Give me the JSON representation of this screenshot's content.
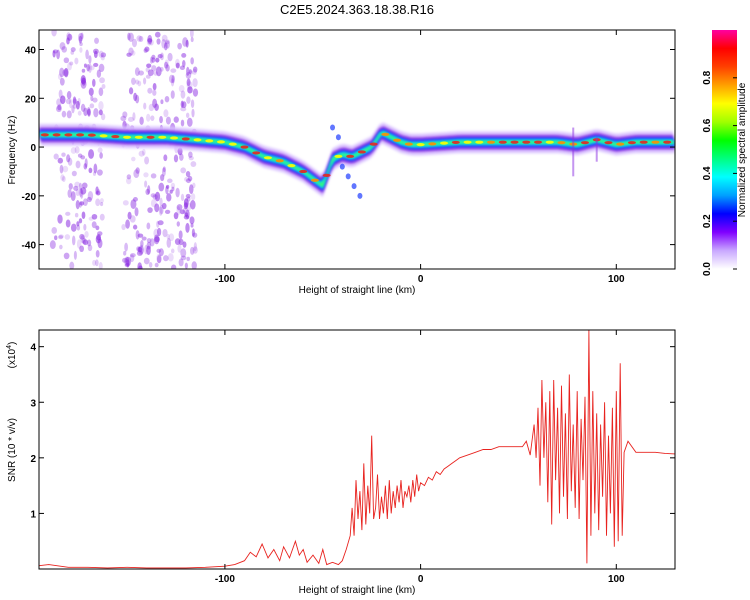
{
  "title": "C2E5.2024.363.18.38.R16",
  "colors": {
    "snr_line": "#e8231f",
    "frame": "#000000",
    "spectrogram_ridge": "#e8231f",
    "spectrogram_scatter": "#8a2be2"
  },
  "chart_data": [
    {
      "type": "heatmap",
      "name": "spectrogram",
      "xlabel": "Height of straight line (km)",
      "ylabel": "Frequency (Hz)",
      "xlim": [
        -195,
        130
      ],
      "ylim": [
        -50,
        48
      ],
      "xticks": [
        -100,
        0,
        100
      ],
      "yticks": [
        -40,
        -20,
        0,
        20,
        40
      ],
      "colorbar": {
        "label": "Normalized spectral amplitude",
        "range": [
          0.0,
          1.0
        ],
        "ticks": [
          0.0,
          0.2,
          0.4,
          0.6,
          0.8
        ],
        "tick_labels": [
          "0.0",
          "0.2",
          "0.4",
          "0.6",
          "0.8"
        ],
        "colormap": [
          "#ffffff",
          "#c9a8ff",
          "#8000ff",
          "#0000ff",
          "#00a0ff",
          "#00ffff",
          "#00ff80",
          "#00ff00",
          "#a0ff00",
          "#ffff00",
          "#ffa000",
          "#ff4000",
          "#ff0000",
          "#ff00a0"
        ]
      },
      "ridge": {
        "x": [
          -195,
          -170,
          -150,
          -130,
          -115,
          -100,
          -90,
          -80,
          -70,
          -60,
          -50,
          -45,
          -40,
          -35,
          -30,
          -25,
          -20,
          -15,
          -10,
          -5,
          0,
          20,
          40,
          60,
          70,
          80,
          90,
          100,
          110,
          130
        ],
        "y": [
          5,
          5,
          4,
          4,
          3,
          2,
          0,
          -4,
          -6,
          -10,
          -16,
          -5,
          -3,
          -4,
          -2,
          0,
          6,
          4,
          2,
          1,
          1,
          2,
          2,
          2,
          2,
          1,
          3,
          1,
          2,
          2
        ]
      }
    },
    {
      "type": "line",
      "name": "snr",
      "xlabel": "Height of straight line (km)",
      "ylabel": "SNR (10 * v/v)",
      "y_multiplier": "(x10",
      "y_multiplier_exp": "4",
      "xlim": [
        -195,
        130
      ],
      "ylim": [
        0,
        4.3
      ],
      "xticks": [
        -100,
        0,
        100
      ],
      "yticks": [
        1,
        2,
        3,
        4
      ],
      "x": [
        -195,
        -190,
        -180,
        -170,
        -160,
        -150,
        -140,
        -130,
        -120,
        -110,
        -100,
        -95,
        -90,
        -87,
        -84,
        -81,
        -78,
        -75,
        -72,
        -70,
        -67,
        -64,
        -62,
        -60,
        -58,
        -55,
        -52,
        -50,
        -48,
        -45,
        -42,
        -40,
        -38,
        -36,
        -35,
        -34,
        -33,
        -32,
        -31,
        -30,
        -29,
        -28,
        -27,
        -26,
        -25,
        -24,
        -23,
        -22,
        -21,
        -20,
        -19,
        -18,
        -17,
        -16,
        -15,
        -14,
        -13,
        -12,
        -11,
        -10,
        -9,
        -8,
        -7,
        -6,
        -5,
        -4,
        -3,
        -2,
        -1,
        0,
        2,
        4,
        6,
        8,
        10,
        12,
        14,
        16,
        18,
        20,
        24,
        28,
        32,
        36,
        40,
        44,
        48,
        52,
        54,
        56,
        58,
        59,
        60,
        61,
        62,
        63,
        64,
        65,
        66,
        67,
        68,
        69,
        70,
        71,
        72,
        73,
        74,
        75,
        76,
        77,
        78,
        79,
        80,
        81,
        82,
        83,
        84,
        85,
        86,
        87,
        88,
        89,
        90,
        91,
        92,
        93,
        94,
        95,
        96,
        97,
        98,
        99,
        100,
        101,
        102,
        103,
        104,
        106,
        110,
        115,
        120,
        125,
        130
      ],
      "y": [
        0.06,
        0.08,
        0.03,
        0.03,
        0.02,
        0.03,
        0.02,
        0.02,
        0.02,
        0.03,
        0.05,
        0.08,
        0.15,
        0.3,
        0.22,
        0.45,
        0.2,
        0.35,
        0.15,
        0.4,
        0.2,
        0.5,
        0.25,
        0.35,
        0.12,
        0.25,
        0.1,
        0.35,
        0.08,
        0.12,
        0.08,
        0.15,
        0.35,
        0.6,
        1.1,
        0.6,
        1.6,
        0.9,
        1.4,
        0.7,
        1.9,
        0.8,
        1.5,
        1.0,
        2.4,
        0.9,
        1.1,
        1.7,
        0.9,
        1.3,
        1.0,
        1.5,
        0.9,
        1.6,
        1.0,
        1.4,
        1.1,
        1.5,
        1.2,
        1.6,
        1.1,
        1.4,
        1.3,
        1.5,
        1.2,
        1.6,
        1.3,
        1.7,
        1.4,
        1.55,
        1.5,
        1.65,
        1.6,
        1.75,
        1.7,
        1.8,
        1.85,
        1.9,
        1.95,
        2.0,
        2.05,
        2.1,
        2.15,
        2.15,
        2.2,
        2.2,
        2.2,
        2.2,
        2.3,
        2.05,
        2.6,
        2.0,
        2.9,
        1.5,
        3.4,
        2.0,
        3.0,
        1.2,
        3.2,
        0.8,
        3.4,
        1.6,
        2.9,
        1.0,
        3.3,
        1.3,
        2.8,
        0.9,
        3.5,
        1.4,
        2.6,
        1.1,
        3.2,
        0.9,
        2.7,
        1.6,
        3.1,
        0.1,
        4.3,
        0.6,
        3.2,
        1.0,
        2.8,
        0.7,
        2.6,
        1.3,
        3.0,
        0.6,
        2.4,
        1.0,
        2.9,
        0.4,
        3.2,
        0.5,
        3.7,
        0.6,
        2.1,
        2.3,
        2.1,
        2.1,
        2.1,
        2.08,
        2.07
      ]
    }
  ]
}
